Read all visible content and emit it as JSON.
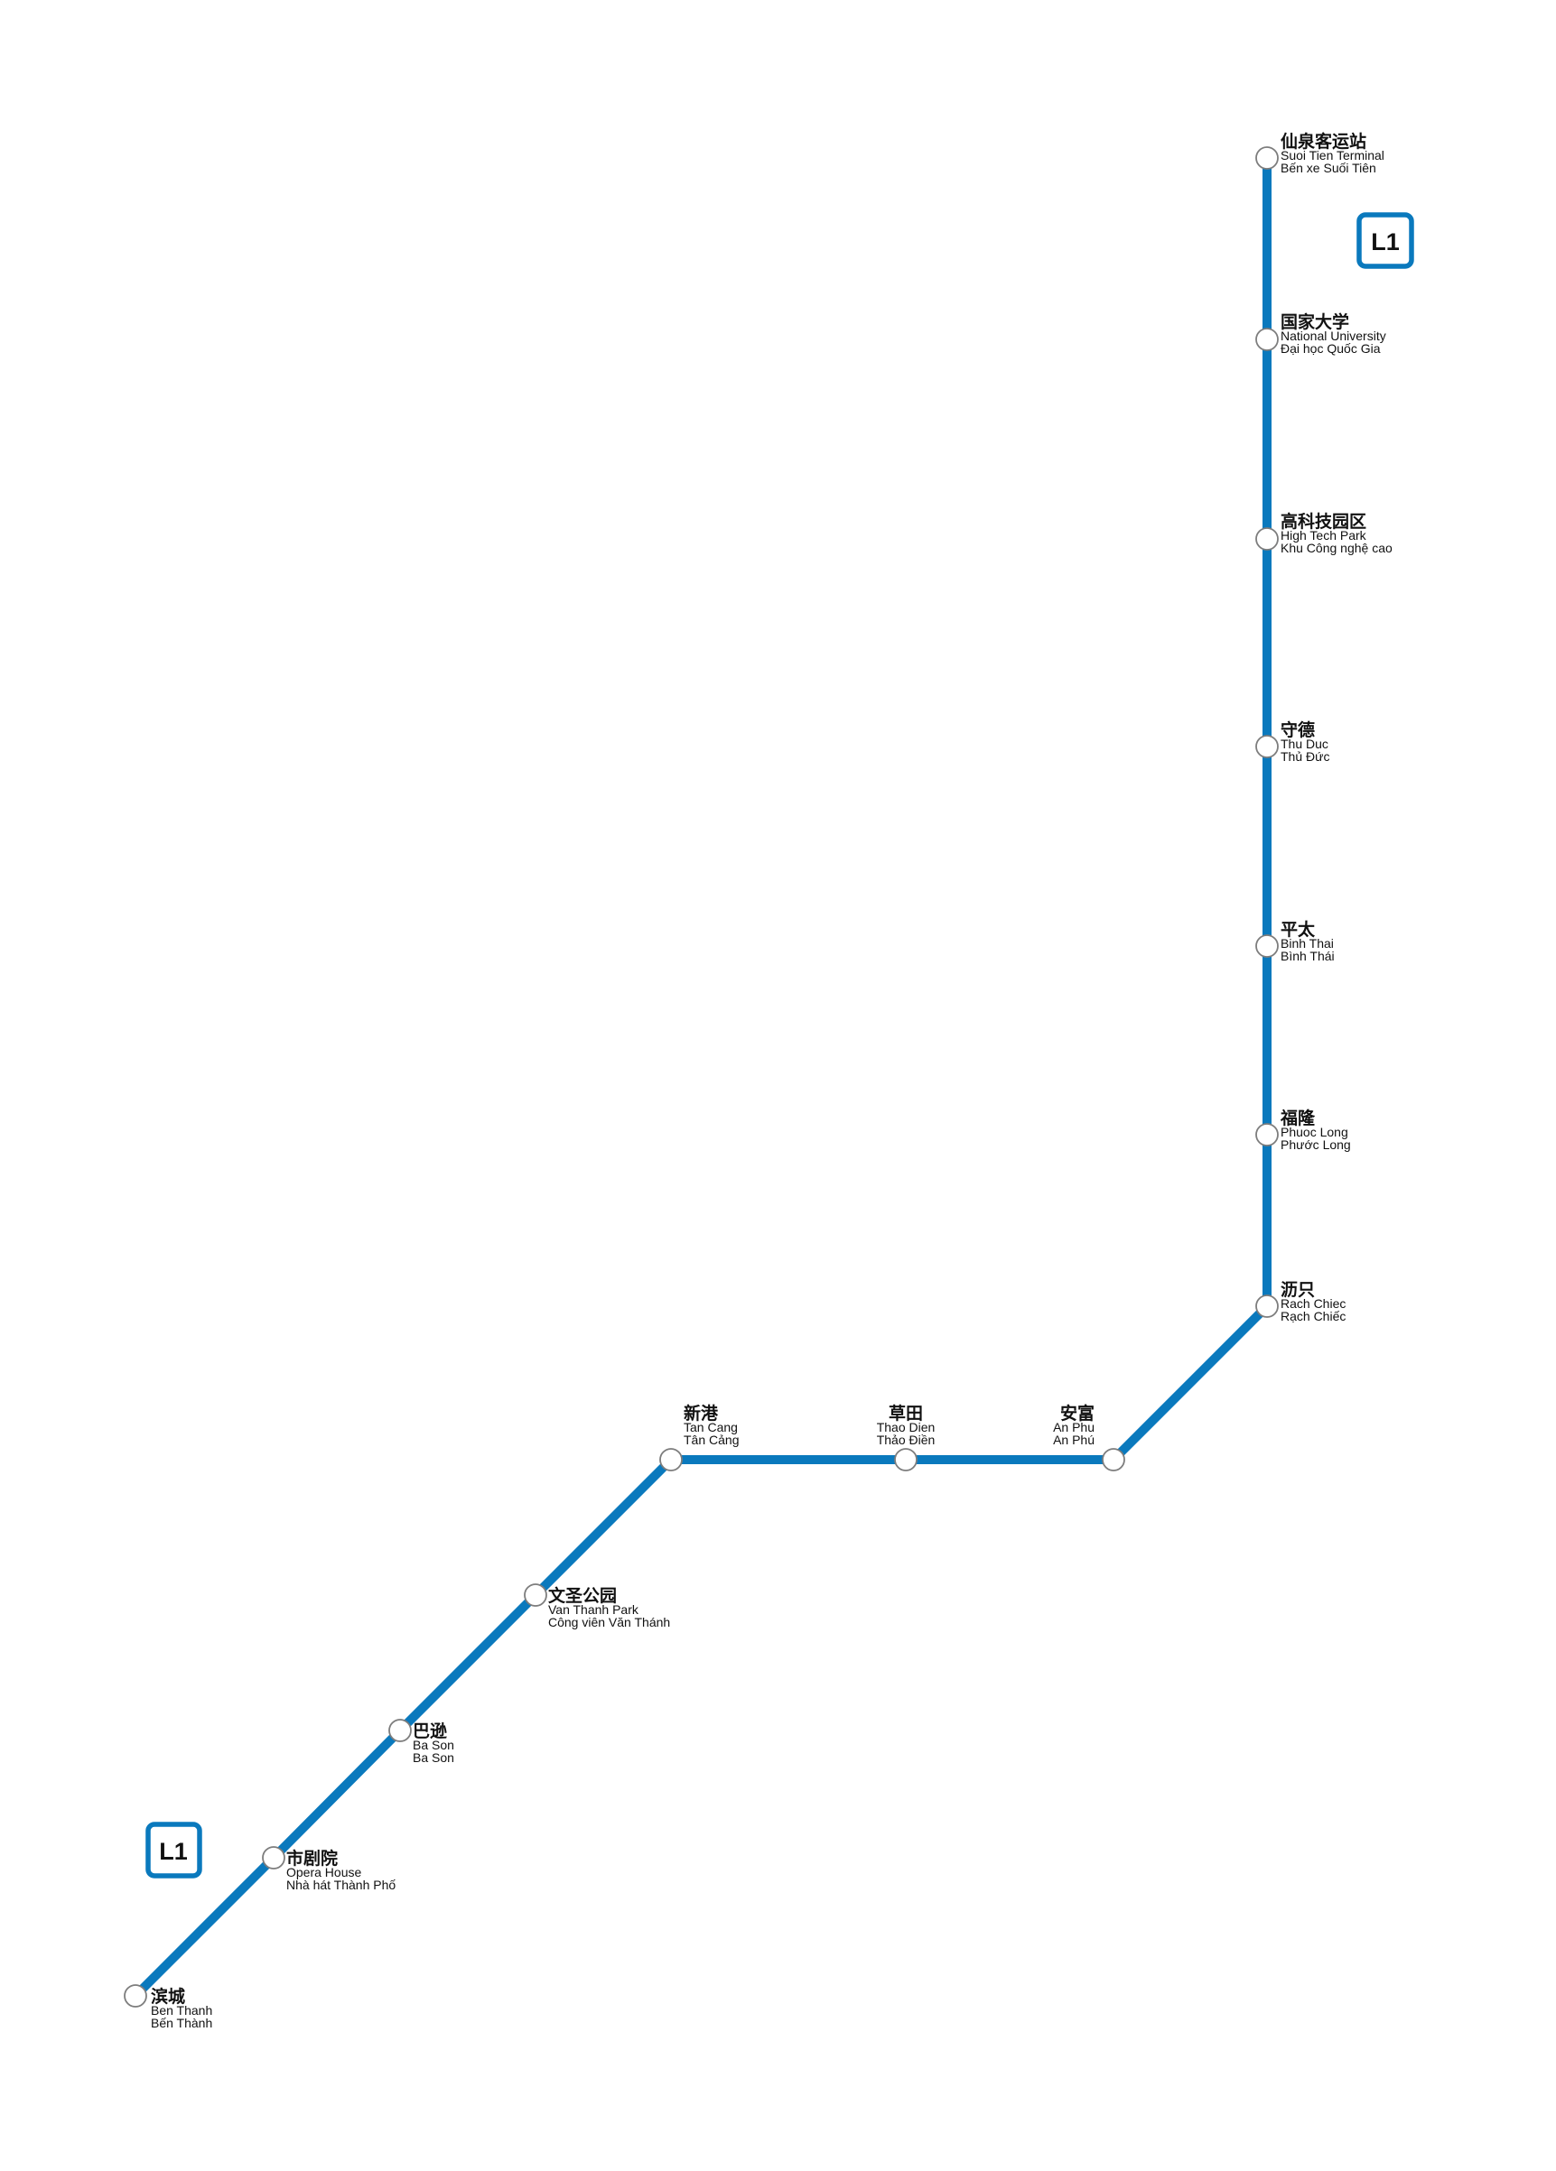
{
  "map": {
    "line": {
      "code": "L1",
      "color": "#0a79bd"
    },
    "badges": [
      {
        "id": "badge-north",
        "label": "L1"
      },
      {
        "id": "badge-south",
        "label": "L1"
      }
    ],
    "stations": [
      {
        "slug": "suoi-tien-terminal",
        "cn": "仙泉客运站",
        "en": "Suoi Tien Terminal",
        "vi": "Bến xe Suối Tiên"
      },
      {
        "slug": "national-university",
        "cn": "国家大学",
        "en": "National University",
        "vi": "Đại học Quốc Gia"
      },
      {
        "slug": "high-tech-park",
        "cn": "高科技园区",
        "en": "High Tech Park",
        "vi": "Khu Công nghệ cao"
      },
      {
        "slug": "thu-duc",
        "cn": "守德",
        "en": "Thu Duc",
        "vi": "Thủ Đức"
      },
      {
        "slug": "binh-thai",
        "cn": "平太",
        "en": "Binh Thai",
        "vi": "Bình Thái"
      },
      {
        "slug": "phuoc-long",
        "cn": "福隆",
        "en": "Phuoc Long",
        "vi": "Phước Long"
      },
      {
        "slug": "rach-chiec",
        "cn": "沥只",
        "en": "Rach Chiec",
        "vi": "Rạch Chiếc"
      },
      {
        "slug": "an-phu",
        "cn": "安富",
        "en": "An Phu",
        "vi": "An Phú"
      },
      {
        "slug": "thao-dien",
        "cn": "草田",
        "en": "Thao Dien",
        "vi": "Thảo Điền"
      },
      {
        "slug": "tan-cang",
        "cn": "新港",
        "en": "Tan Cang",
        "vi": "Tân Cảng"
      },
      {
        "slug": "van-thanh-park",
        "cn": "文圣公园",
        "en": "Van Thanh Park",
        "vi": "Công viên Văn Thánh"
      },
      {
        "slug": "ba-son",
        "cn": "巴逊",
        "en": "Ba Son",
        "vi": "Ba Son"
      },
      {
        "slug": "opera-house",
        "cn": "市剧院",
        "en": "Opera House",
        "vi": "Nhà hát Thành Phố"
      },
      {
        "slug": "ben-thanh",
        "cn": "滨城",
        "en": "Ben Thanh",
        "vi": "Bến Thành"
      }
    ]
  }
}
